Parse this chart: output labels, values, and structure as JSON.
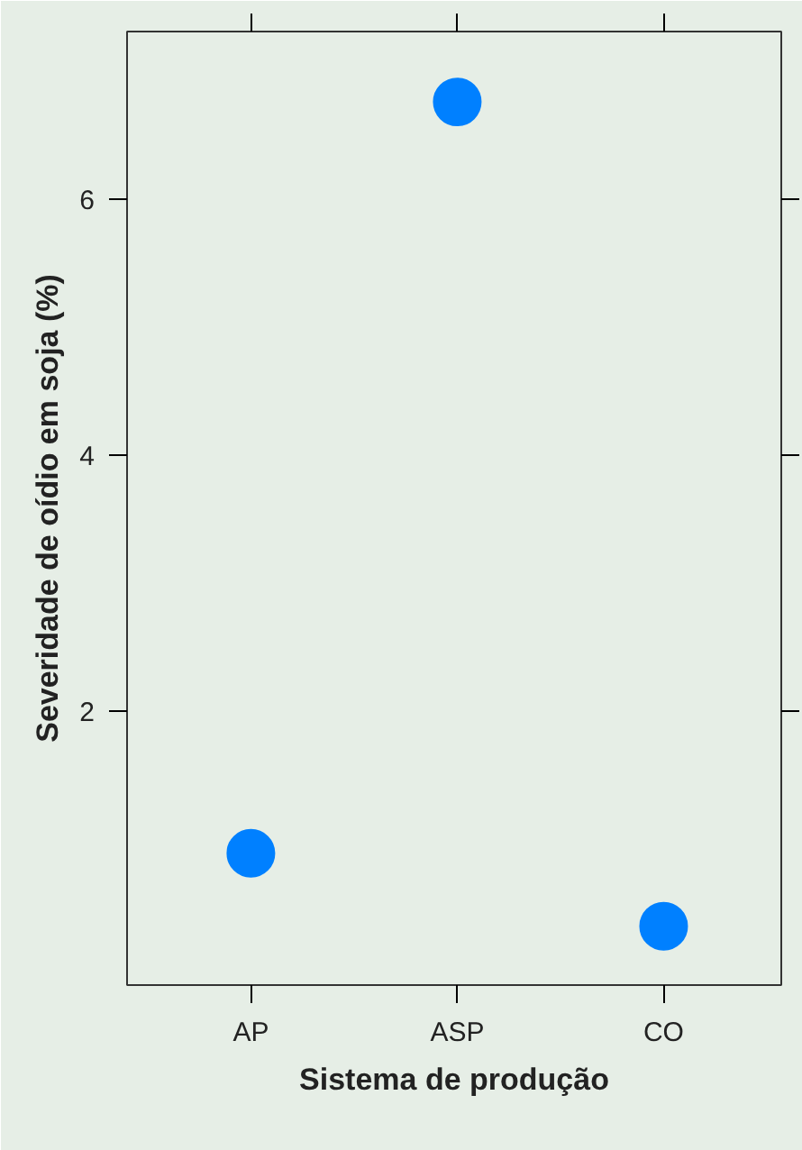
{
  "chart_data": {
    "type": "scatter",
    "xlabel": "Sistema de produção",
    "ylabel": "Severidade de oídio em soja (%)",
    "categories": [
      "AP",
      "ASP",
      "CO"
    ],
    "series": [
      {
        "color": "#0080ff",
        "values": [
          0.89,
          6.76,
          0.32
        ]
      }
    ],
    "ylim": [
      -0.14,
      7.31
    ],
    "yticks": [
      2,
      4,
      6
    ],
    "marker": "circle",
    "grid": false
  }
}
